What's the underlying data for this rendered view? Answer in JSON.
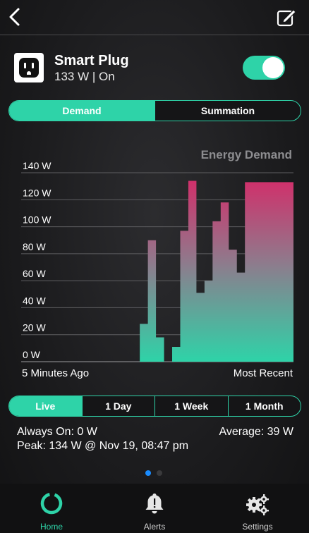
{
  "device": {
    "name": "Smart Plug",
    "status": "133 W | On",
    "power_on": true
  },
  "view_tabs": [
    {
      "label": "Demand",
      "active": true
    },
    {
      "label": "Summation",
      "active": false
    }
  ],
  "range_tabs": [
    {
      "label": "Live",
      "active": true
    },
    {
      "label": "1 Day",
      "active": false
    },
    {
      "label": "1 Week",
      "active": false
    },
    {
      "label": "1 Month",
      "active": false
    }
  ],
  "stats": {
    "always_on": "Always On: 0 W",
    "average": "Average: 39  W",
    "peak": "Peak: 134 W @ Nov 19, 08:47 pm"
  },
  "pager": {
    "pages": 2,
    "current": 0
  },
  "nav": [
    {
      "label": "Home",
      "icon": "home-ring-icon",
      "active": true
    },
    {
      "label": "Alerts",
      "icon": "bell-icon",
      "active": false
    },
    {
      "label": "Settings",
      "icon": "gears-icon",
      "active": false
    }
  ],
  "colors": {
    "accent": "#2ed3a8",
    "high": "#d0306b",
    "pager_active": "#1a8cff"
  },
  "chart_data": {
    "type": "area",
    "title": "Energy Demand",
    "xlabel_left": "5 Minutes Ago",
    "xlabel_right": "Most Recent",
    "ylim": [
      0,
      140
    ],
    "y_ticks": [
      0,
      20,
      40,
      60,
      80,
      100,
      120,
      140
    ],
    "y_tick_labels": [
      "0 W",
      "20 W",
      "40 W",
      "60 W",
      "80 W",
      "100 W",
      "120 W",
      "140 W"
    ],
    "grid": true,
    "step": true,
    "x": [
      0,
      8.8,
      9.4,
      10,
      10.6,
      11.2,
      11.8,
      12.4,
      13,
      13.6,
      14.2,
      14.8,
      15.4,
      16,
      16.6,
      17.2,
      17.8,
      18.4,
      19,
      19.6,
      20.2
    ],
    "values": [
      0,
      28,
      90,
      18,
      0,
      11,
      97,
      134,
      51,
      60,
      104,
      118,
      83,
      66,
      133,
      133,
      133,
      133,
      133,
      133,
      133
    ]
  }
}
